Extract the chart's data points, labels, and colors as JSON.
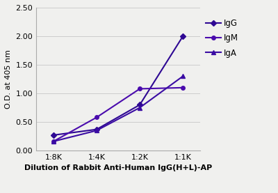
{
  "x_labels": [
    "1:8K",
    "1:4K",
    "1:2K",
    "1:1K"
  ],
  "x_values": [
    0,
    1,
    2,
    3
  ],
  "IgG": [
    0.27,
    0.37,
    0.8,
    2.0
  ],
  "IgM": [
    0.16,
    0.58,
    1.08,
    1.1
  ],
  "IgA": [
    0.16,
    0.35,
    0.75,
    1.3
  ],
  "color_IgG": "#2e0893",
  "color_IgM": "#4a0bad",
  "color_IgA": "#3a0ca3",
  "xlabel": "Dilution of Rabbit Anti-Human IgG(H+L)-AP",
  "ylabel": "O.D. at 405 nm",
  "ylim": [
    0.0,
    2.5
  ],
  "yticks": [
    0.0,
    0.5,
    1.0,
    1.5,
    2.0,
    2.5
  ],
  "legend_labels": [
    "IgG",
    "IgM",
    "IgA"
  ],
  "marker_IgG": "D",
  "marker_IgM": "o",
  "marker_IgA": "^",
  "linewidth": 1.5,
  "markersize": 4,
  "bg_color": "#f0f0ee",
  "grid_color": "#cccccc",
  "spine_color": "#aaaaaa",
  "tick_label_fontsize": 8,
  "xlabel_fontsize": 8,
  "ylabel_fontsize": 8
}
